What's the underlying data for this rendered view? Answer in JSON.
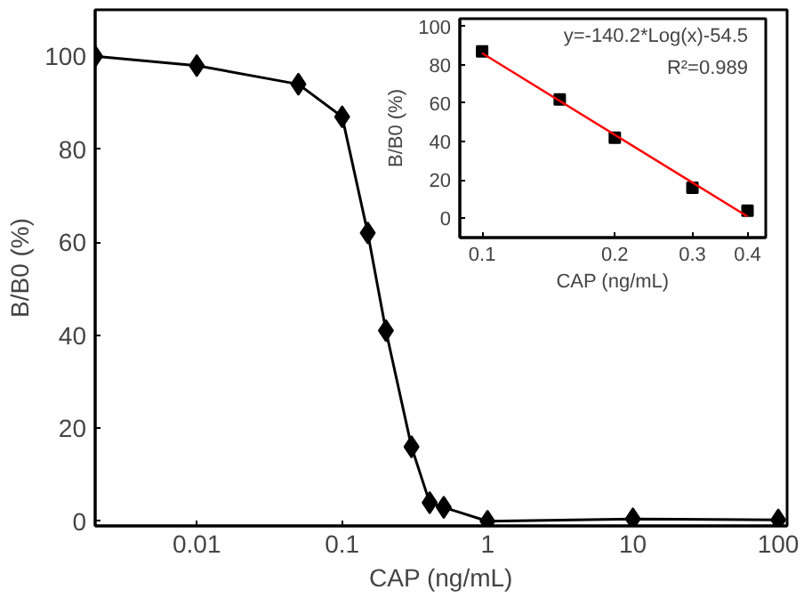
{
  "chart_data": [
    {
      "type": "line",
      "xlabel": "CAP (ng/mL)",
      "ylabel": "B/B0 (%)",
      "log": "x",
      "marker": "diamond",
      "grid": false,
      "x": [
        0.002,
        0.01,
        0.05,
        0.1,
        0.15,
        0.2,
        0.3,
        0.4,
        0.5,
        1,
        10,
        100
      ],
      "series": [
        {
          "color": "#000000",
          "values": [
            100,
            98,
            94,
            87,
            62,
            41,
            16,
            4,
            3,
            0,
            0.5,
            0.3
          ]
        }
      ],
      "xlim": [
        0.002,
        115
      ],
      "ylim": [
        -1,
        110
      ],
      "xticks": [
        0.01,
        0.1,
        1,
        10,
        100
      ],
      "yticks": [
        0,
        20,
        40,
        60,
        80,
        100
      ]
    },
    {
      "type": "scatter",
      "xlabel": "CAP (ng/mL)",
      "ylabel": "B/B0 (%)",
      "log": "x",
      "grid": false,
      "annotations": [
        "y=-140.2*Log(x)-54.5",
        "R²=0.989"
      ],
      "x": [
        0.1,
        0.15,
        0.2,
        0.3,
        0.4
      ],
      "series": [
        {
          "color": "#000000",
          "marker": "square",
          "values": [
            87,
            62,
            42,
            16,
            4
          ]
        },
        {
          "type": "line",
          "marker": "none",
          "color": "#ff0000",
          "x": [
            0.1,
            0.4
          ],
          "values": [
            86,
            1
          ]
        }
      ],
      "xlim": [
        0.089,
        0.44
      ],
      "ylim": [
        -10,
        104
      ],
      "xticks": [
        0.1,
        0.2,
        0.3,
        0.4
      ],
      "yticks": [
        0,
        20,
        40,
        60,
        80,
        100
      ]
    }
  ]
}
